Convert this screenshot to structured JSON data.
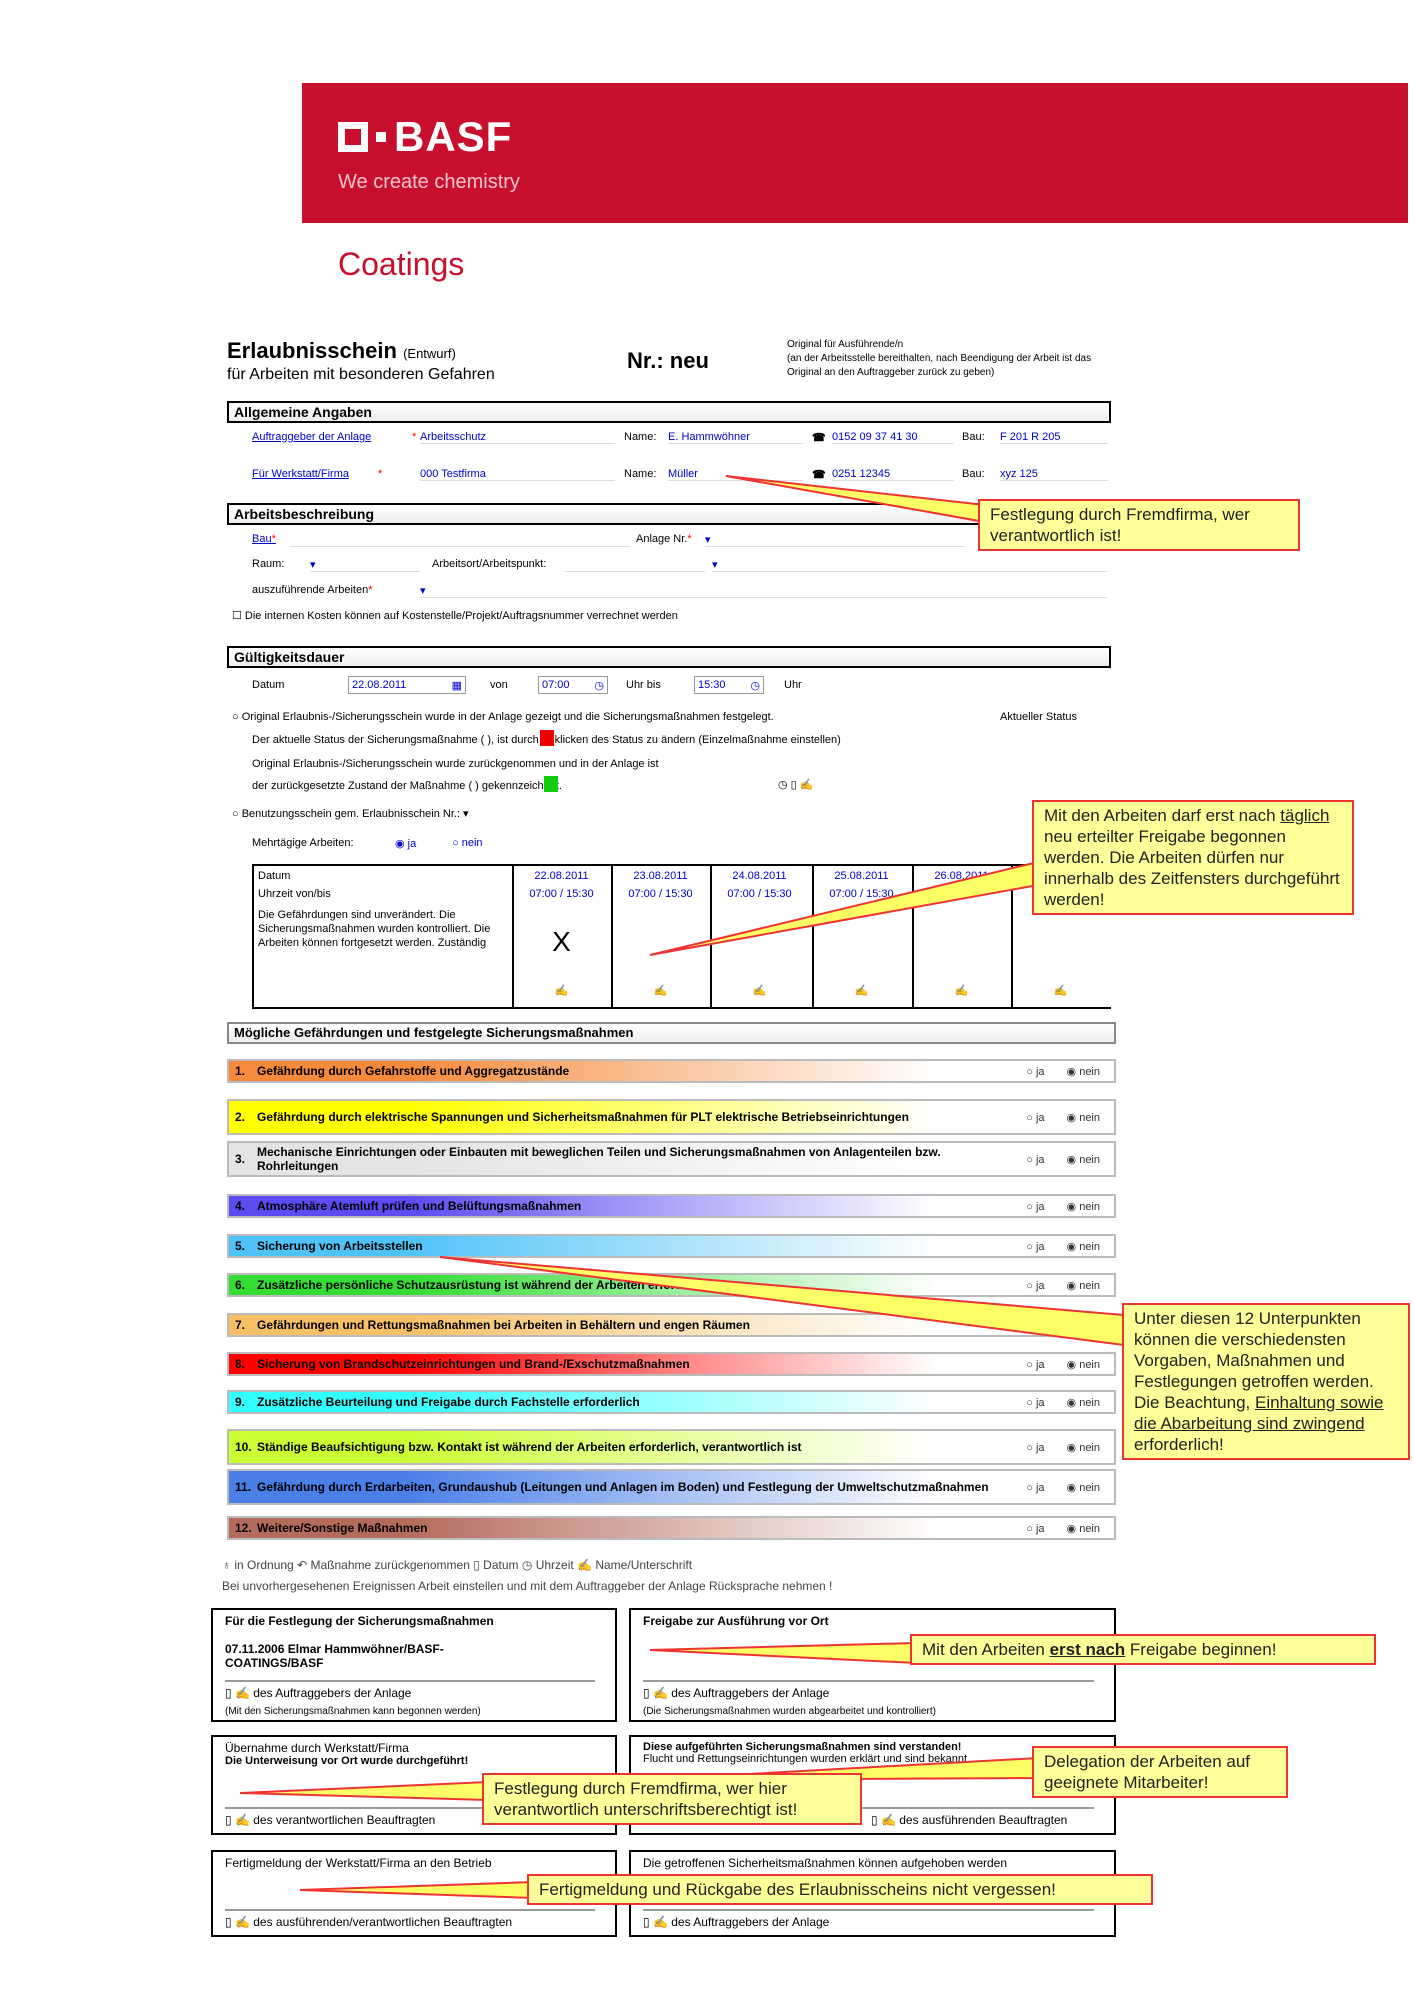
{
  "brand": {
    "name": "BASF",
    "slogan": "We create chemistry",
    "division": "Coatings",
    "color": "#c8102e"
  },
  "header": {
    "title": "Erlaubnisschein",
    "draft": "(Entwurf)",
    "subtitle": "für Arbeiten mit besonderen Gefahren",
    "nr": "Nr.: neu",
    "orig1": "Original für Ausführende/n",
    "orig2": "(an der Arbeitsstelle bereithalten, nach Beendigung der Arbeit ist das Original an den Auftraggeber zurück zu geben)"
  },
  "allg": {
    "title": "Allgemeine Angaben",
    "rows": [
      {
        "label": "Auftraggeber der Anlage",
        "value": "Arbeitsschutz",
        "name_label": "Name:",
        "name": "E. Hammwöhner",
        "phone": "0152 09 37 41 30",
        "bau_label": "Bau:",
        "bau": "F 201 R 205"
      },
      {
        "label": "Für Werkstatt/Firma",
        "value": "000 Testfirma",
        "name_label": "Name:",
        "name": "Müller",
        "phone": "0251 12345",
        "bau_label": "Bau:",
        "bau": "xyz 125"
      }
    ]
  },
  "arb": {
    "title": "Arbeitsbeschreibung",
    "bau": "Bau",
    "anlage": "Anlage Nr.",
    "raum": "Raum:",
    "ort": "Arbeitsort/Arbeitspunkt:",
    "arbeiten": "auszuführende Arbeiten",
    "kosten": "Die internen Kosten können auf Kostenstelle/Projekt/Auftragsnummer verrechnet werden"
  },
  "gueltig": {
    "title": "Gültigkeitsdauer",
    "datum_label": "Datum",
    "datum": "22.08.2011",
    "von": "von",
    "von_val": "07:00",
    "bis": "Uhr bis",
    "bis_val": "15:30",
    "uhr": "Uhr",
    "s1": "Original Erlaubnis-/Sicherungsschein wurde in der Anlage gezeigt und die Sicherungsmaßnahmen festgelegt.",
    "aktuell": "Aktueller Status",
    "s2": "Der aktuelle Status der Sicherungsmaßnahme (  ), ist durch Anklicken des Status zu ändern (Einzelmaßnahme einstellen)",
    "s3": "Original Erlaubnis-/Sicherungsschein wurde zurückgenommen und in der Anlage ist",
    "s4": "der zurückgesetzte Zustand der Maßnahme (  ) gekennzeichnet.",
    "benutz": "Benutzungsschein gem. Erlaubnisschein Nr.:",
    "mehr": "Mehrtägige Arbeiten:",
    "ja": "ja",
    "nein": "nein",
    "mehr_selected": "ja"
  },
  "days": {
    "row_labels": [
      "Datum",
      "Uhrzeit von/bis"
    ],
    "desc": "Die Gefährdungen sind unverändert. Die Sicherungsmaßnahmen wurden kontrolliert. Die Arbeiten können fortgesetzt werden. Zuständig",
    "cols": [
      {
        "date": "22.08.2011",
        "time": "07:00 / 15:30",
        "mark": "X"
      },
      {
        "date": "23.08.2011",
        "time": "07:00 / 15:30",
        "mark": ""
      },
      {
        "date": "24.08.2011",
        "time": "07:00 / 15:30",
        "mark": ""
      },
      {
        "date": "25.08.2011",
        "time": "07:00 / 15:30",
        "mark": ""
      },
      {
        "date": "26.08.2011",
        "time": "",
        "mark": ""
      },
      {
        "date": "",
        "time": "",
        "mark": ""
      }
    ]
  },
  "hazards": {
    "title": "Mögliche Gefährdungen und festgelegte Sicherungsmaßnahmen",
    "ja": "ja",
    "nein": "nein",
    "items": [
      {
        "num": "1.",
        "text": "Gefährdung durch Gefahrstoffe und Aggregatzustände",
        "color": "#f58a3a",
        "selected": "nein"
      },
      {
        "num": "2.",
        "text": "Gefährdung durch elektrische Spannungen und Sicherheitsmaßnahmen für PLT elektrische Betriebseinrichtungen",
        "color": "#ffff00",
        "selected": "nein"
      },
      {
        "num": "3.",
        "text": "Mechanische Einrichtungen oder Einbauten mit beweglichen Teilen und Sicherungsmaßnahmen von Anlagenteilen bzw. Rohrleitungen",
        "color": "#e4e4e4",
        "selected": "nein"
      },
      {
        "num": "4.",
        "text": "Atmosphäre Atemluft prüfen und Belüftungsmaßnahmen",
        "color": "#5a4cf0",
        "selected": "nein"
      },
      {
        "num": "5.",
        "text": "Sicherung von Arbeitsstellen",
        "color": "#4fc3f7",
        "selected": "nein"
      },
      {
        "num": "6.",
        "text": "Zusätzliche persönliche Schutzausrüstung ist während der Arbeiten erforderlich",
        "color": "#33dd33",
        "selected": "nein"
      },
      {
        "num": "7.",
        "text": "Gefährdungen und Rettungsmaßnahmen bei Arbeiten in Behältern und engen Räumen",
        "color": "#f7c067",
        "selected": "nein"
      },
      {
        "num": "8.",
        "text": "Sicherung von Brandschutzeinrichtungen und Brand-/Exschutzmaßnahmen",
        "color": "#ff0000",
        "selected": "nein"
      },
      {
        "num": "9.",
        "text": "Zusätzliche Beurteilung und Freigabe durch Fachstelle erforderlich",
        "color": "#33ffff",
        "selected": "nein"
      },
      {
        "num": "10.",
        "text": "Ständige Beaufsichtigung bzw. Kontakt ist während der Arbeiten erforderlich, verantwortlich ist",
        "color": "#ccff33",
        "selected": "nein"
      },
      {
        "num": "11.",
        "text": "Gefährdung durch Erdarbeiten, Grundaushub (Leitungen und Anlagen im Boden) und Festlegung der Umweltschutzmaßnahmen",
        "color": "#4a7fe8",
        "selected": "nein"
      },
      {
        "num": "12.",
        "text": "Weitere/Sonstige Maßnahmen",
        "color": "#b56b5c",
        "selected": "nein"
      }
    ]
  },
  "legend": {
    "ok": "in Ordnung",
    "back": "Maßnahme zurückgenommen",
    "datum": "Datum",
    "uhr": "Uhrzeit",
    "name": "Name/Unterschrift",
    "note": "Bei unvorhergesehenen Ereignissen Arbeit einstellen und mit dem Auftraggeber der Anlage Rücksprache nehmen !"
  },
  "boxes": [
    {
      "title": "Für die Festlegung der Sicherungsmaßnahmen",
      "line2": "",
      "entry": "07.11.2006 Elmar Hammwöhner/BASF-COATINGS/BASF",
      "sig": "des Auftraggebers der Anlage",
      "note": "(Mit den Sicherungsmaßnahmen kann begonnen werden)"
    },
    {
      "title": "Freigabe zur Ausführung vor Ort",
      "line2": "",
      "entry": "",
      "sig": "des Auftraggebers der Anlage",
      "note": "(Die Sicherungsmaßnahmen wurden abgearbeitet und kontrolliert)"
    },
    {
      "title": "Übernahme durch Werkstatt/Firma",
      "line2": "Die Unterweisung vor Ort wurde durchgeführt!",
      "entry": "",
      "sig": "des verantwortlichen Beauftragten",
      "note": ""
    },
    {
      "title": "Diese aufgeführten Sicherungsmaßnahmen sind verstanden!",
      "line2": "Flucht und Rettungseinrichtungen wurden erklärt und sind bekannt",
      "entry": "",
      "sig": "des ausführenden Beauftragten",
      "note": ""
    },
    {
      "title": "Fertigmeldung der Werkstatt/Firma an den Betrieb",
      "line2": "",
      "entry": "",
      "sig": "des ausführenden/verantwortlichen Beauftragten",
      "note": ""
    },
    {
      "title": "Die getroffenen Sicherheitsmaßnahmen können aufgehoben werden",
      "line2": "",
      "entry": "",
      "sig": "des Auftraggebers der Anlage",
      "note": ""
    }
  ],
  "callouts": {
    "c1": "Festlegung durch Fremdfirma, wer verantwortlich ist!",
    "c2a": "Mit den Arbeiten darf erst nach",
    "c2u": "täglich",
    "c2b": "neu erteilter Freigabe begonnen werden. Die Arbeiten dürfen nur innerhalb des Zeitfensters durchgeführt werden!",
    "c3a": "Unter diesen 12 Unterpunkten können die verschiedensten Vorgaben, Maßnahmen und Festlegungen getroffen werden. Die Beachtung,",
    "c3u": "Einhaltung sowie die Abarbeitung sind zwingend",
    "c3b": "erforderlich!",
    "c4a": "Mit den Arbeiten",
    "c4u": "erst nach",
    "c4b": "Freigabe beginnen!",
    "c5": "Festlegung durch Fremdfirma, wer hier verantwortlich unterschriftsberechtigt ist!",
    "c6": "Delegation der Arbeiten auf geeignete Mitarbeiter!",
    "c7": "Fertigmeldung und Rückgabe des Erlaubnisscheins nicht vergessen!"
  }
}
